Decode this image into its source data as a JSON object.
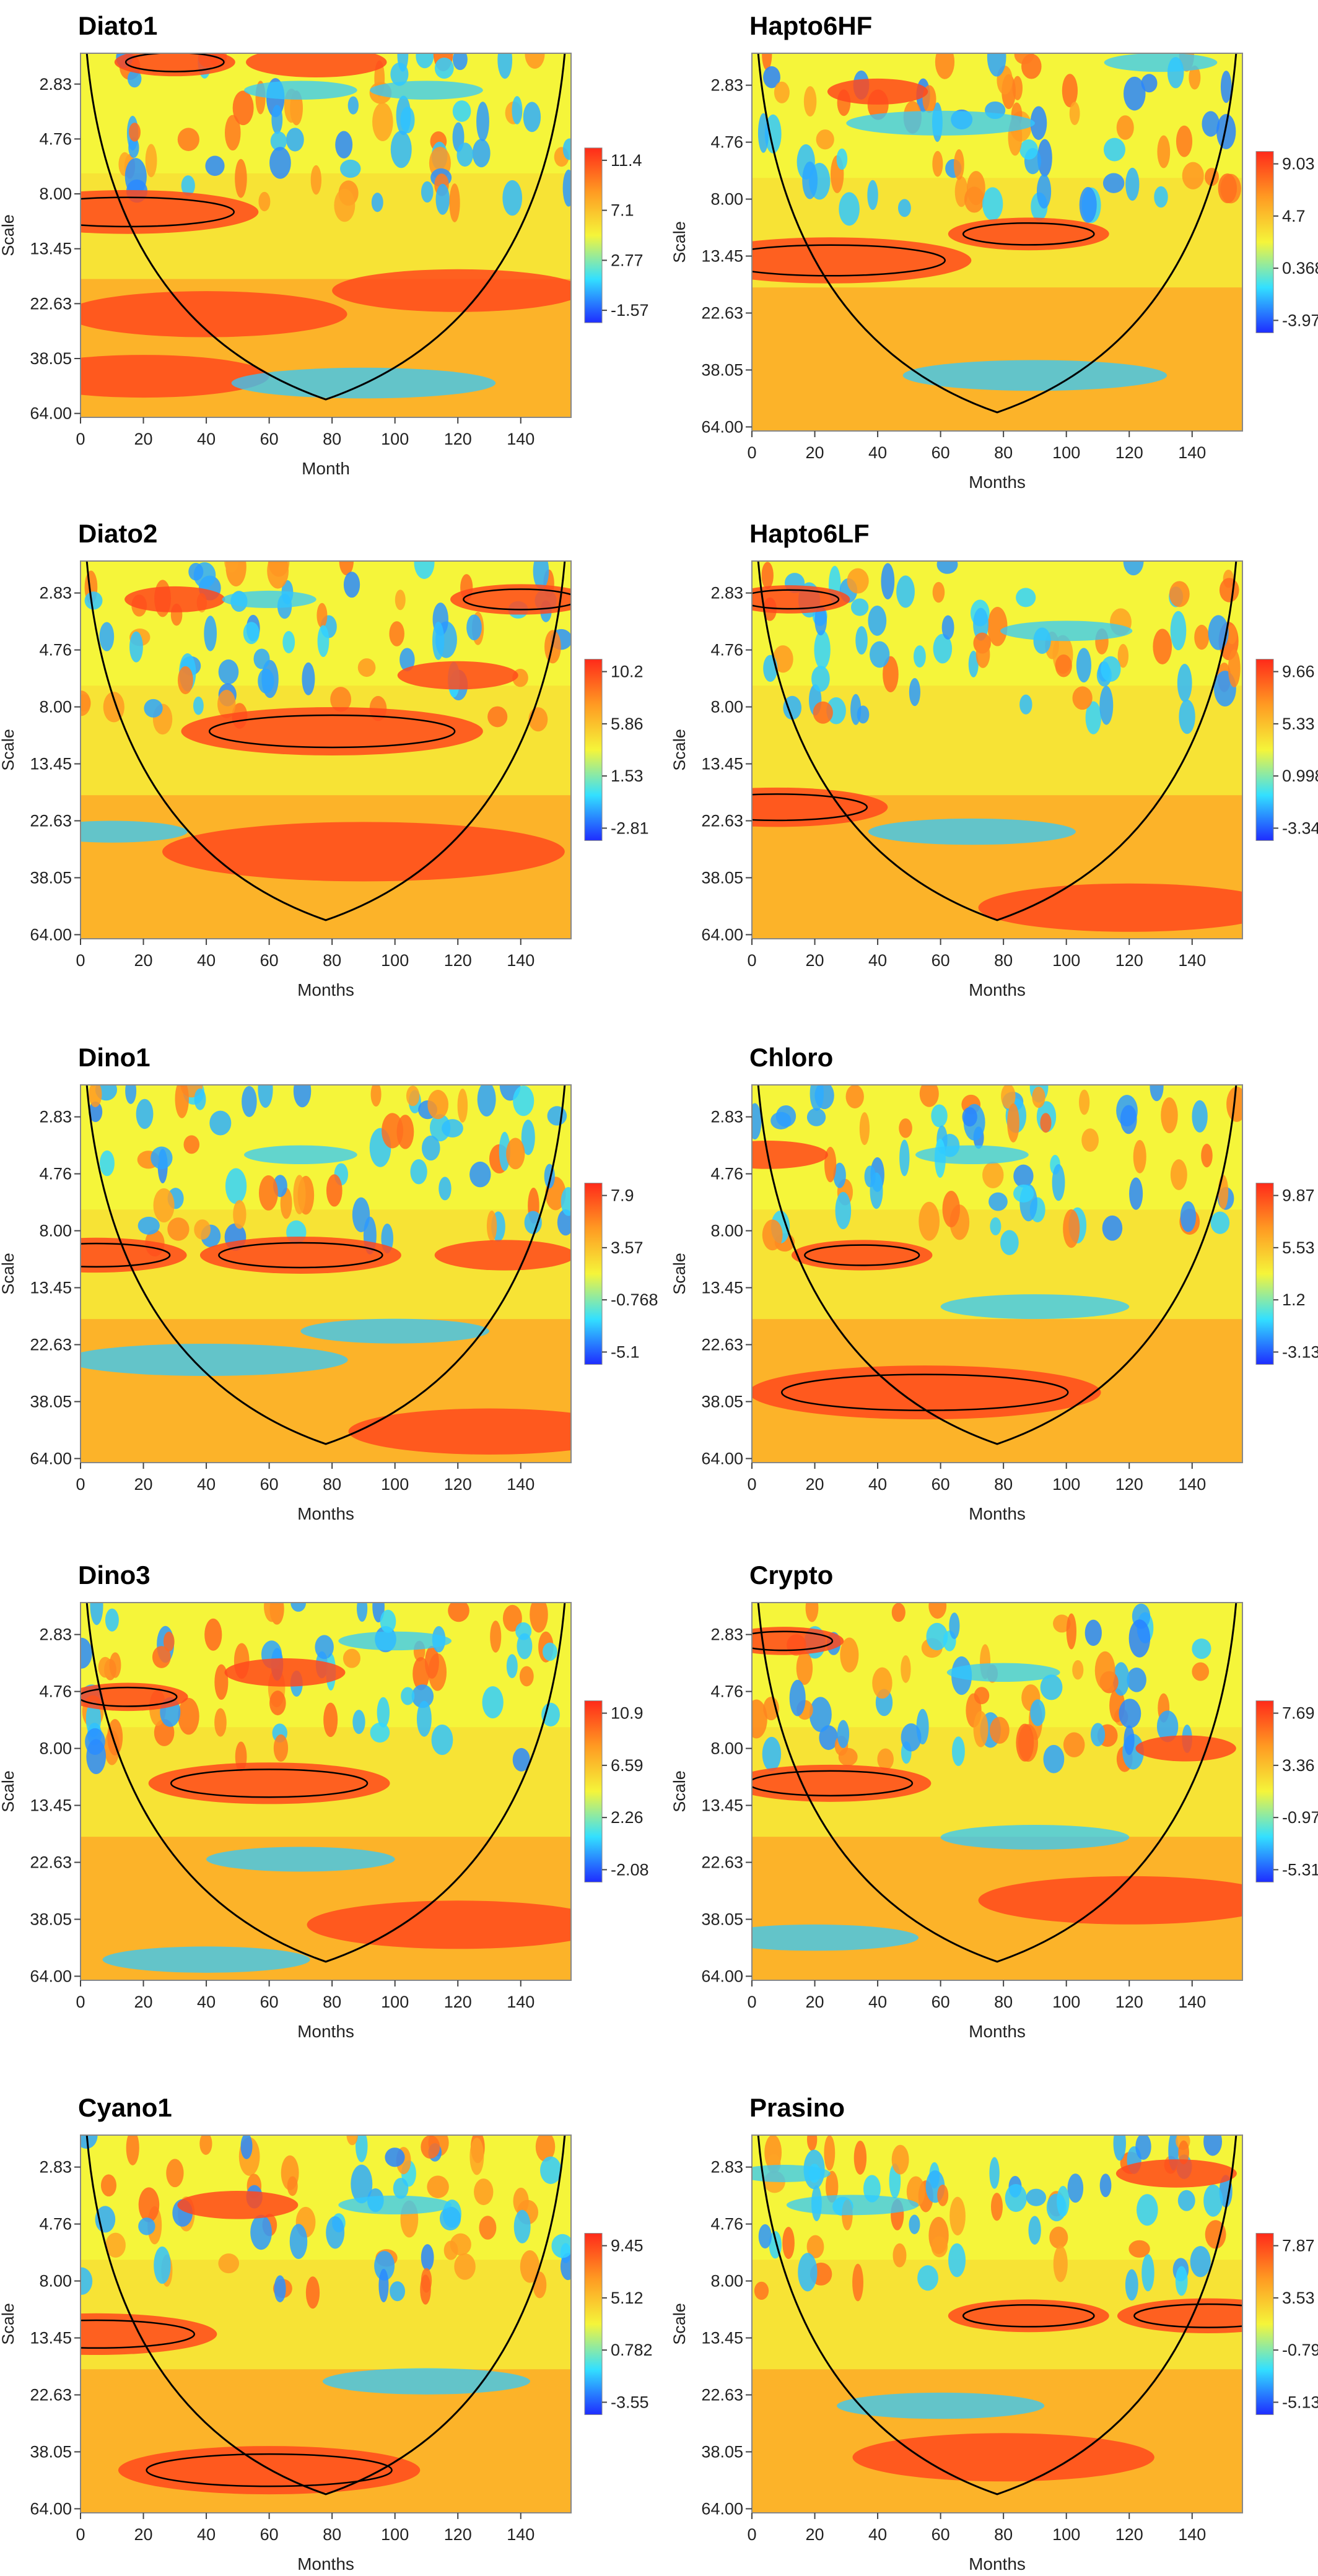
{
  "chart_data": [
    {
      "type": "heatmap",
      "title": "Diato1",
      "xlabel": "Month",
      "ylabel": "Scale",
      "xticks": [
        0,
        20,
        40,
        60,
        80,
        100,
        120,
        140
      ],
      "xlim": [
        0,
        156
      ],
      "yticks": [
        "2.83",
        "4.76",
        "8.00",
        "13.45",
        "22.63",
        "38.05",
        "64.00"
      ],
      "colorbar": {
        "ticks": [
          "11.4",
          "7.1",
          "2.77",
          "-1.57"
        ],
        "min": -1.57,
        "max": 11.4
      },
      "hot": [
        [
          15,
          9.5,
          26
        ],
        [
          30,
          2.3,
          12
        ],
        [
          40,
          25,
          28
        ],
        [
          20,
          45,
          25
        ],
        [
          120,
          20,
          25
        ],
        [
          75,
          2.3,
          14
        ]
      ],
      "cold": [
        [
          70,
          3,
          12
        ],
        [
          110,
          3,
          12
        ],
        [
          90,
          48,
          28
        ]
      ]
    },
    {
      "type": "heatmap",
      "title": "Hapto6HF",
      "xlabel": "Months",
      "ylabel": "Scale",
      "xticks": [
        0,
        20,
        40,
        60,
        80,
        100,
        120,
        140
      ],
      "xlim": [
        0,
        156
      ],
      "yticks": [
        "2.83",
        "4.76",
        "8.00",
        "13.45",
        "22.63",
        "38.05",
        "64.00"
      ],
      "colorbar": {
        "ticks": [
          "9.03",
          "4.7",
          "0.368",
          "-3.97"
        ],
        "min": -3.97,
        "max": 9.03
      },
      "hot": [
        [
          25,
          14,
          28
        ],
        [
          88,
          11,
          16
        ],
        [
          40,
          3,
          10
        ]
      ],
      "cold": [
        [
          130,
          2.3,
          12
        ],
        [
          90,
          40,
          28
        ],
        [
          60,
          4,
          20
        ]
      ]
    },
    {
      "type": "heatmap",
      "title": "Diato2",
      "xlabel": "Months",
      "ylabel": "Scale",
      "xticks": [
        0,
        20,
        40,
        60,
        80,
        100,
        120,
        140
      ],
      "xlim": [
        0,
        156
      ],
      "yticks": [
        "2.83",
        "4.76",
        "8.00",
        "13.45",
        "22.63",
        "38.05",
        "64.00"
      ],
      "colorbar": {
        "ticks": [
          "10.2",
          "5.86",
          "1.53",
          "-2.81"
        ],
        "min": -2.81,
        "max": 10.2
      },
      "hot": [
        [
          80,
          10,
          30
        ],
        [
          140,
          3,
          14
        ],
        [
          30,
          3,
          10
        ],
        [
          90,
          30,
          40
        ],
        [
          120,
          6,
          12
        ]
      ],
      "cold": [
        [
          10,
          25,
          16
        ],
        [
          60,
          3,
          10
        ]
      ]
    },
    {
      "type": "heatmap",
      "title": "Hapto6LF",
      "xlabel": "Months",
      "ylabel": "Scale",
      "xticks": [
        0,
        20,
        40,
        60,
        80,
        100,
        120,
        140
      ],
      "xlim": [
        0,
        156
      ],
      "yticks": [
        "2.83",
        "4.76",
        "8.00",
        "13.45",
        "22.63",
        "38.05",
        "64.00"
      ],
      "colorbar": {
        "ticks": [
          "9.66",
          "5.33",
          "0.998",
          "-3.34"
        ],
        "min": -3.34,
        "max": 9.66
      },
      "hot": [
        [
          8,
          20,
          22
        ],
        [
          12,
          3,
          12
        ],
        [
          120,
          50,
          30
        ]
      ],
      "cold": [
        [
          70,
          25,
          22
        ],
        [
          100,
          4,
          14
        ]
      ]
    },
    {
      "type": "heatmap",
      "title": "Dino1",
      "xlabel": "Months",
      "ylabel": "Scale",
      "xticks": [
        0,
        20,
        40,
        60,
        80,
        100,
        120,
        140
      ],
      "xlim": [
        0,
        156
      ],
      "yticks": [
        "2.83",
        "4.76",
        "8.00",
        "13.45",
        "22.63",
        "38.05",
        "64.00"
      ],
      "colorbar": {
        "ticks": [
          "7.9",
          "3.57",
          "-0.768",
          "-5.1"
        ],
        "min": -5.1,
        "max": 7.9
      },
      "hot": [
        [
          5,
          10,
          18
        ],
        [
          70,
          10,
          20
        ],
        [
          135,
          10,
          14
        ],
        [
          130,
          50,
          28
        ]
      ],
      "cold": [
        [
          40,
          26,
          30
        ],
        [
          100,
          20,
          20
        ],
        [
          70,
          4,
          12
        ]
      ]
    },
    {
      "type": "heatmap",
      "title": "Chloro",
      "xlabel": "Months",
      "ylabel": "Scale",
      "xticks": [
        0,
        20,
        40,
        60,
        80,
        100,
        120,
        140
      ],
      "xlim": [
        0,
        156
      ],
      "yticks": [
        "2.83",
        "4.76",
        "8.00",
        "13.45",
        "22.63",
        "38.05",
        "64.00"
      ],
      "colorbar": {
        "ticks": [
          "9.87",
          "5.53",
          "1.2",
          "-3.13"
        ],
        "min": -3.13,
        "max": 9.87
      },
      "hot": [
        [
          55,
          35,
          35
        ],
        [
          35,
          10,
          14
        ],
        [
          5,
          4,
          12
        ]
      ],
      "cold": [
        [
          90,
          16,
          20
        ],
        [
          70,
          4,
          12
        ]
      ]
    },
    {
      "type": "heatmap",
      "title": "Dino3",
      "xlabel": "Months",
      "ylabel": "Scale",
      "xticks": [
        0,
        20,
        40,
        60,
        80,
        100,
        120,
        140
      ],
      "xlim": [
        0,
        156
      ],
      "yticks": [
        "2.83",
        "4.76",
        "8.00",
        "13.45",
        "22.63",
        "38.05",
        "64.00"
      ],
      "colorbar": {
        "ticks": [
          "10.9",
          "6.59",
          "2.26",
          "-2.08"
        ],
        "min": -2.08,
        "max": 10.9
      },
      "hot": [
        [
          60,
          11,
          24
        ],
        [
          15,
          5,
          12
        ],
        [
          65,
          4,
          12
        ],
        [
          120,
          40,
          30
        ]
      ],
      "cold": [
        [
          40,
          55,
          22
        ],
        [
          100,
          3,
          12
        ],
        [
          70,
          22,
          20
        ]
      ]
    },
    {
      "type": "heatmap",
      "title": "Crypto",
      "xlabel": "Months",
      "ylabel": "Scale",
      "xticks": [
        0,
        20,
        40,
        60,
        80,
        100,
        120,
        140
      ],
      "xlim": [
        0,
        156
      ],
      "yticks": [
        "2.83",
        "4.76",
        "8.00",
        "13.45",
        "22.63",
        "38.05",
        "64.00"
      ],
      "colorbar": {
        "ticks": [
          "7.69",
          "3.36",
          "-0.973",
          "-5.31"
        ],
        "min": -5.31,
        "max": 7.69
      },
      "hot": [
        [
          25,
          11,
          20
        ],
        [
          10,
          3,
          12
        ],
        [
          138,
          8,
          10
        ],
        [
          120,
          32,
          30
        ]
      ],
      "cold": [
        [
          20,
          45,
          22
        ],
        [
          80,
          4,
          12
        ],
        [
          90,
          18,
          20
        ]
      ]
    },
    {
      "type": "heatmap",
      "title": "Cyano1",
      "xlabel": "Months",
      "ylabel": "Scale",
      "xticks": [
        0,
        20,
        40,
        60,
        80,
        100,
        120,
        140
      ],
      "xlim": [
        0,
        156
      ],
      "yticks": [
        "2.83",
        "4.76",
        "8.00",
        "13.45",
        "22.63",
        "38.05",
        "64.00"
      ],
      "colorbar": {
        "ticks": [
          "9.45",
          "5.12",
          "0.782",
          "-3.55"
        ],
        "min": -3.55,
        "max": 9.45
      },
      "hot": [
        [
          5,
          13,
          24
        ],
        [
          60,
          45,
          30
        ],
        [
          50,
          4,
          12
        ]
      ],
      "cold": [
        [
          110,
          20,
          22
        ],
        [
          100,
          4,
          12
        ]
      ]
    },
    {
      "type": "heatmap",
      "title": "Prasino",
      "xlabel": "Months",
      "ylabel": "Scale",
      "xticks": [
        0,
        20,
        40,
        60,
        80,
        100,
        120,
        140
      ],
      "xlim": [
        0,
        156
      ],
      "yticks": [
        "2.83",
        "4.76",
        "8.00",
        "13.45",
        "22.63",
        "38.05",
        "64.00"
      ],
      "colorbar": {
        "ticks": [
          "7.87",
          "3.53",
          "-0.799",
          "-5.13"
        ],
        "min": -5.13,
        "max": 7.87
      },
      "hot": [
        [
          145,
          11,
          18
        ],
        [
          88,
          11,
          16
        ],
        [
          80,
          40,
          30
        ],
        [
          135,
          3,
          12
        ]
      ],
      "cold": [
        [
          32,
          4,
          14
        ],
        [
          10,
          3,
          10
        ],
        [
          60,
          25,
          22
        ]
      ]
    }
  ]
}
